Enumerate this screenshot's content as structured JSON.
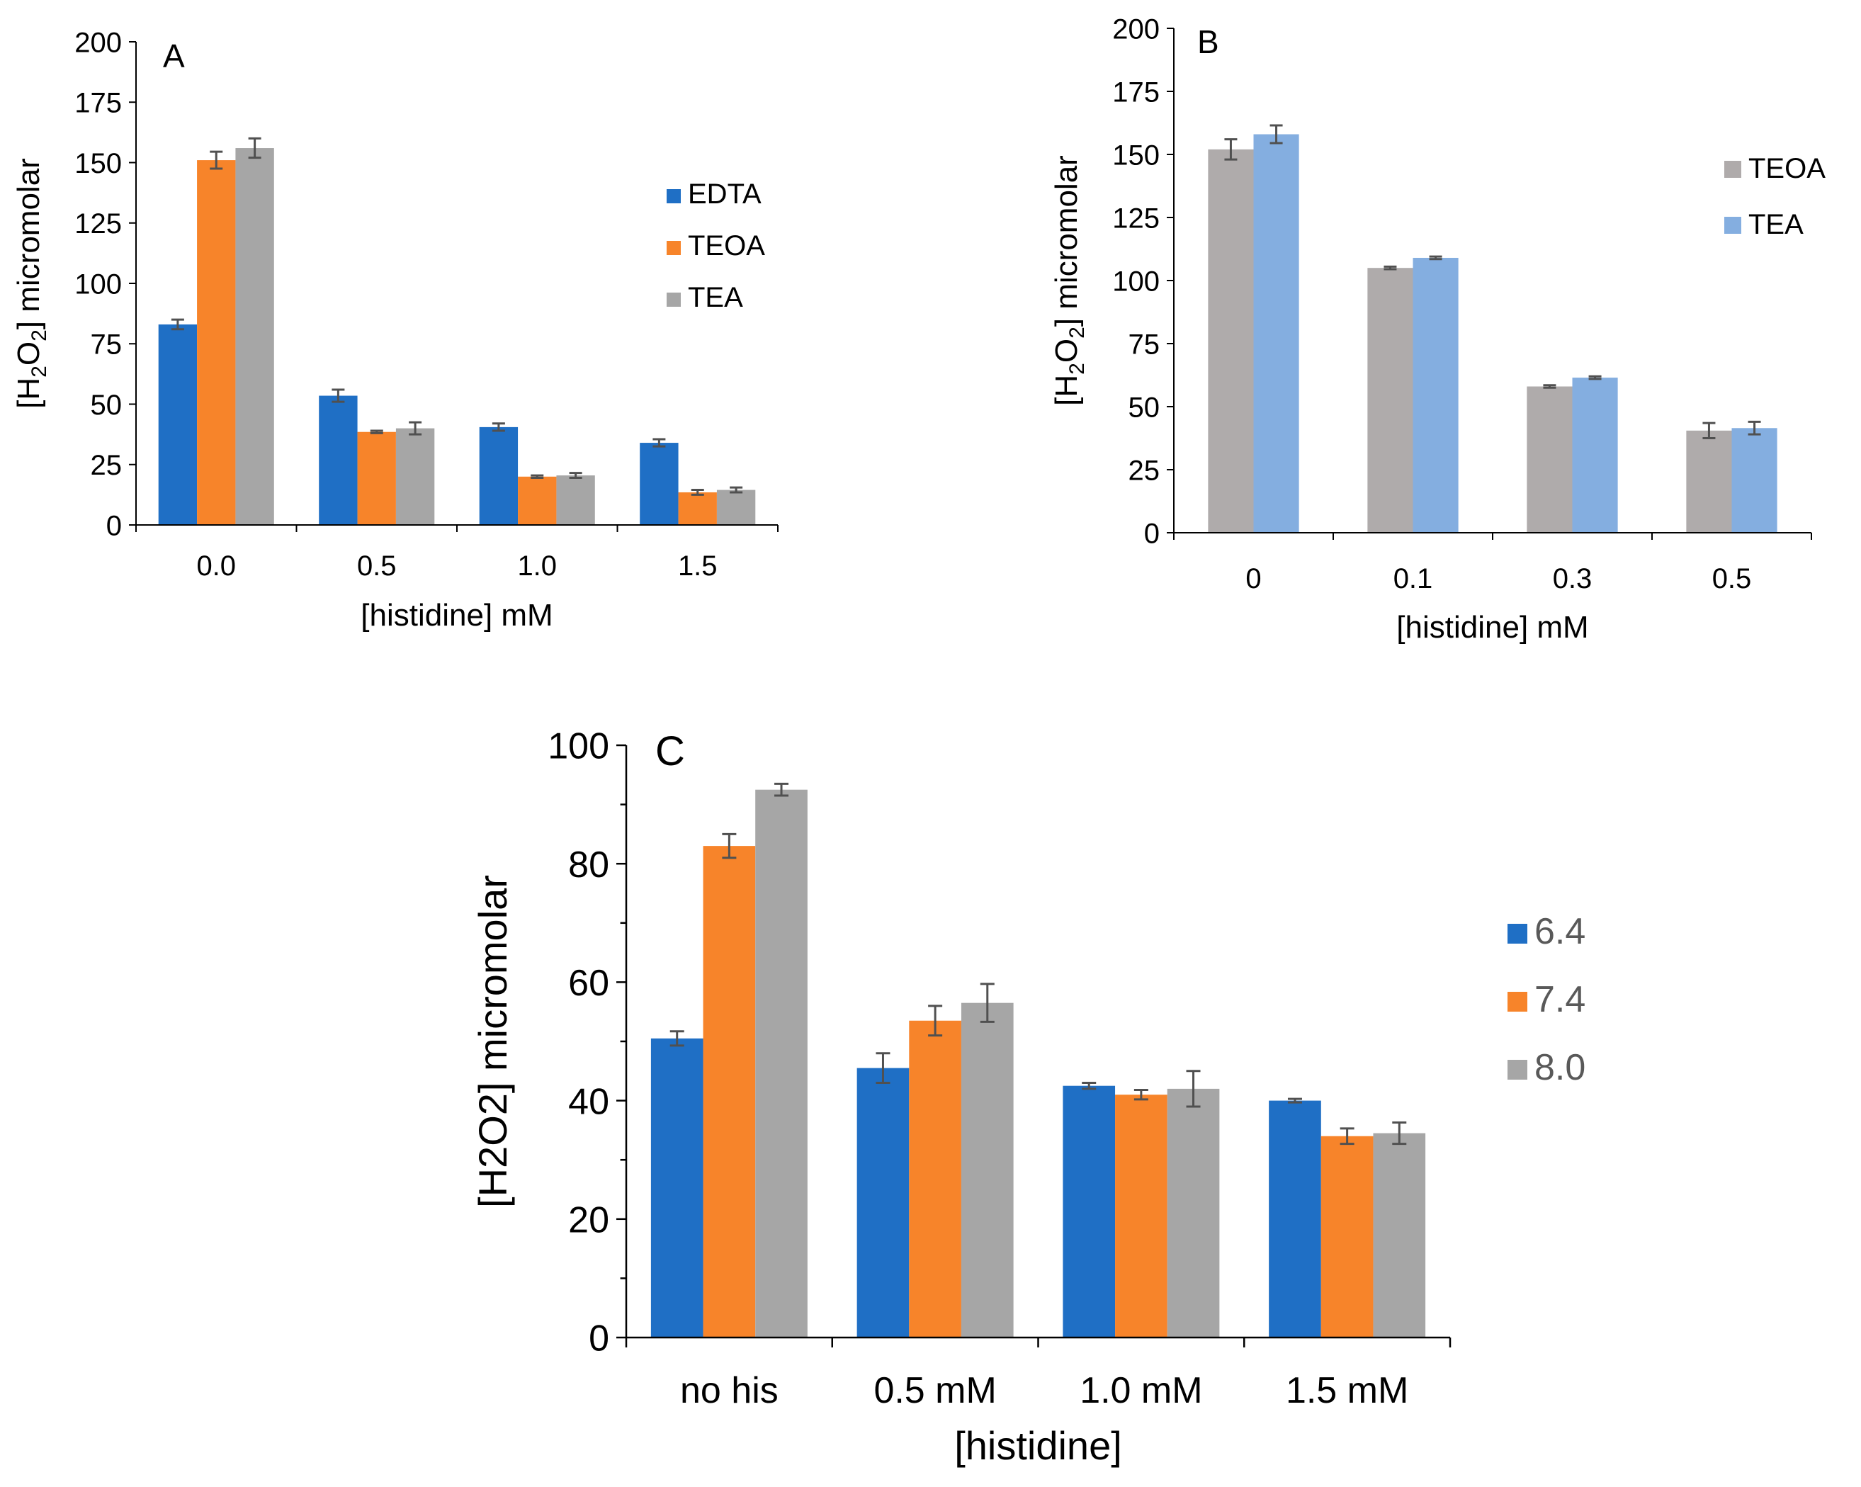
{
  "chart_data": [
    {
      "id": "A",
      "type": "bar",
      "panel_label": "A",
      "xlabel": "[histidine]  mM",
      "ylabel": "[H2O2] micromolar",
      "ylabel_parts": {
        "pre": "[H",
        "sub1": "2",
        "mid": "O",
        "sub2": "2",
        "post": "] micromolar"
      },
      "ylim": [
        0,
        200
      ],
      "yticks": [
        "0",
        "25",
        "50",
        "75",
        "100",
        "125",
        "150",
        "175",
        "200"
      ],
      "categories": [
        "0.0",
        "0.5",
        "1.0",
        "1.5"
      ],
      "legend_position": "right",
      "series": [
        {
          "name": "EDTA",
          "color": "#1f6fc5",
          "values": [
            83,
            53.5,
            40.5,
            34
          ],
          "errors": [
            2,
            2.5,
            1.5,
            1.5
          ]
        },
        {
          "name": "TEOA",
          "color": "#f7842a",
          "values": [
            151,
            38.5,
            20,
            13.5
          ],
          "errors": [
            3.5,
            0.5,
            0.5,
            1
          ]
        },
        {
          "name": "TEA",
          "color": "#a6a6a6",
          "values": [
            156,
            40,
            20.5,
            14.5
          ],
          "errors": [
            4,
            2.5,
            1,
            1
          ]
        }
      ]
    },
    {
      "id": "B",
      "type": "bar",
      "panel_label": "B",
      "xlabel": "[histidine]  mM",
      "ylabel": "[H2O2] micromolar",
      "ylabel_parts": {
        "pre": "[H",
        "sub1": "2",
        "mid": "O",
        "sub2": "2",
        "post": "] micromolar"
      },
      "ylim": [
        0,
        200
      ],
      "yticks": [
        "0",
        "25",
        "50",
        "75",
        "100",
        "125",
        "150",
        "175",
        "200"
      ],
      "categories": [
        "0",
        "0.1",
        "0.3",
        "0.5"
      ],
      "legend_position": "top-right",
      "series": [
        {
          "name": "TEOA",
          "color": "#afabab",
          "values": [
            152,
            105,
            58,
            40.5
          ],
          "errors": [
            4,
            0.5,
            0.5,
            3
          ]
        },
        {
          "name": "TEA",
          "color": "#84aee0",
          "values": [
            158,
            109,
            61.5,
            41.5
          ],
          "errors": [
            3.5,
            0.5,
            0.5,
            2.5
          ]
        }
      ]
    },
    {
      "id": "C",
      "type": "bar",
      "panel_label": "C",
      "xlabel": "[histidine]",
      "ylabel": "[H2O2] micromolar",
      "ylim": [
        0,
        100
      ],
      "yticks": [
        "0",
        "20",
        "40",
        "60",
        "80",
        "100"
      ],
      "categories": [
        "no his",
        "0.5 mM",
        "1.0 mM",
        "1.5 mM"
      ],
      "legend_position": "right",
      "series": [
        {
          "name": "6.4",
          "color": "#1f6fc5",
          "values": [
            50.5,
            45.5,
            42.5,
            40
          ],
          "errors": [
            1.2,
            2.5,
            0.5,
            0.3
          ]
        },
        {
          "name": "7.4",
          "color": "#f7842a",
          "values": [
            83,
            53.5,
            41,
            34
          ],
          "errors": [
            2,
            2.5,
            0.8,
            1.3
          ]
        },
        {
          "name": "8.0",
          "color": "#a6a6a6",
          "values": [
            92.5,
            56.5,
            42,
            34.5
          ],
          "errors": [
            1,
            3.2,
            3,
            1.8
          ]
        }
      ]
    }
  ]
}
